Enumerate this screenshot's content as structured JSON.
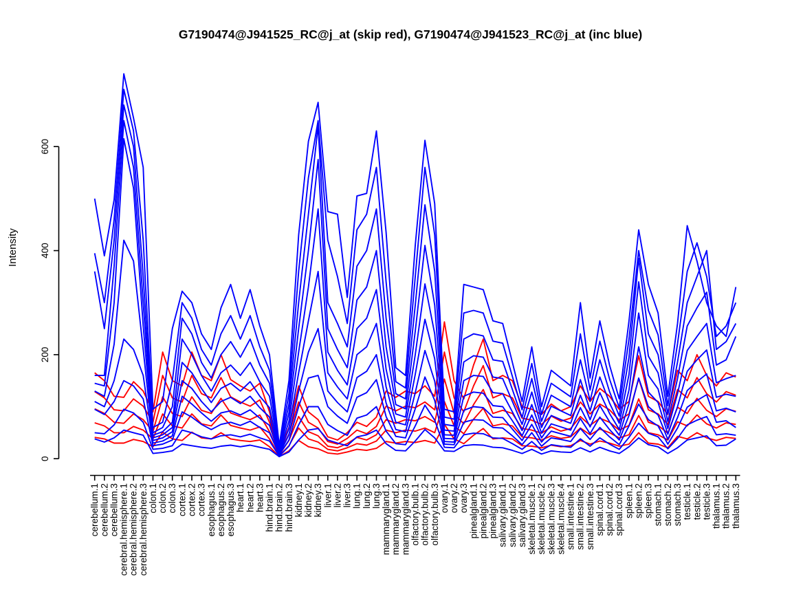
{
  "chart_data": {
    "type": "line",
    "title": "G7190474@J941525_RC@j_at (skip red), G7190474@J941523_RC@j_at (inc blue)",
    "xlabel": "",
    "ylabel": "Intensity",
    "yticks": [
      0,
      200,
      400,
      600
    ],
    "ylim": [
      0,
      745
    ],
    "grid": false,
    "legend_position": "none",
    "groups": {
      "red": "G7190474@J941525_RC@j_at (skip)",
      "blue": "G7190474@J941523_RC@j_at (inc)"
    },
    "colors": {
      "blue": "#0000ff",
      "red": "#ff0000",
      "axis": "#000000"
    },
    "categories": [
      "cerebellum.1",
      "cerebellum.2",
      "cerebellum.3",
      "cerebral.hemisphere.1",
      "cerebral.hemisphere.2",
      "cerebral.hemisphere.3",
      "colon.1",
      "colon.2",
      "colon.3",
      "cortex.1",
      "cortex.2",
      "cortex.3",
      "esophagus.1",
      "esophagus.2",
      "esophagus.3",
      "heart.1",
      "heart.2",
      "heart.3",
      "hind.brain.1",
      "hind.brain.2",
      "hind.brain.3",
      "kidney.1",
      "kidney.2",
      "kidney.3",
      "liver.1",
      "liver.2",
      "liver.3",
      "lung.1",
      "lung.2",
      "lung.3",
      "mammarygland.1",
      "mammarygland.2",
      "mammarygland.3",
      "olfactory.bulb.1",
      "olfactory.bulb.2",
      "olfactory.bulb.3",
      "ovary.1",
      "ovary.2",
      "ovary.3",
      "pinealgland.1",
      "pinealgland.2",
      "pinealgland.3",
      "salivary.gland.1",
      "salivary.gland.2",
      "salivary.gland.3",
      "skeletal.muscle.1",
      "skeletal.muscle.2",
      "skeletal.muscle.3",
      "skeletal.muscle.4",
      "small.intestine.1",
      "small.intestine.2",
      "small.intestine.3",
      "spinal.cord.1",
      "spinal.cord.2",
      "spinal.cord.3",
      "spleen.1",
      "spleen.2",
      "spleen.3",
      "stomach.1",
      "stomach.2",
      "stomach.3",
      "testicle.1",
      "testicle.2",
      "testicle.3",
      "thalamus.1",
      "thalamus.2",
      "thalamus.3"
    ],
    "series": [
      {
        "group": "red",
        "color": "#ff0000",
        "values": [
          165,
          150,
          120,
          118,
          148,
          130,
          90,
          205,
          150,
          140,
          205,
          160,
          150,
          200,
          152,
          140,
          130,
          145,
          90,
          14,
          60,
          140,
          90,
          75,
          42,
          36,
          50,
          70,
          62,
          80,
          130,
          118,
          130,
          125,
          140,
          120,
          263,
          150,
          115,
          180,
          230,
          150,
          160,
          150,
          100,
          95,
          85,
          105,
          92,
          100,
          140,
          110,
          135,
          120,
          95,
          110,
          198,
          120,
          110,
          85,
          170,
          150,
          200,
          160,
          140,
          165,
          157
        ]
      },
      {
        "group": "red",
        "color": "#ff0000",
        "values": [
          129,
          117,
          94,
          92,
          115,
          101,
          70,
          160,
          117,
          109,
          160,
          125,
          117,
          156,
          119,
          109,
          101,
          113,
          70,
          11,
          47,
          109,
          70,
          59,
          33,
          28,
          39,
          55,
          48,
          62,
          101,
          92,
          101,
          98,
          109,
          94,
          205,
          117,
          90,
          140,
          179,
          117,
          125,
          117,
          78,
          74,
          66,
          82,
          72,
          78,
          109,
          86,
          105,
          94,
          74,
          86,
          154,
          94,
          86,
          66,
          133,
          117,
          156,
          125,
          109,
          129,
          122
        ]
      },
      {
        "group": "red",
        "color": "#ff0000",
        "values": [
          96,
          87,
          70,
          68,
          86,
          75,
          52,
          119,
          87,
          81,
          119,
          93,
          87,
          116,
          88,
          81,
          75,
          84,
          52,
          8,
          35,
          81,
          52,
          44,
          24,
          21,
          29,
          41,
          36,
          46,
          75,
          68,
          75,
          73,
          81,
          70,
          153,
          87,
          67,
          104,
          133,
          87,
          93,
          87,
          58,
          55,
          49,
          61,
          53,
          58,
          81,
          64,
          78,
          70,
          55,
          64,
          115,
          70,
          64,
          49,
          99,
          87,
          116,
          93,
          81,
          96,
          91
        ]
      },
      {
        "group": "red",
        "color": "#ff0000",
        "values": [
          69,
          63,
          50,
          50,
          62,
          55,
          38,
          86,
          63,
          59,
          86,
          67,
          63,
          84,
          64,
          59,
          55,
          61,
          38,
          6,
          25,
          59,
          38,
          32,
          18,
          15,
          21,
          29,
          26,
          34,
          55,
          50,
          55,
          53,
          59,
          50,
          110,
          63,
          48,
          76,
          97,
          63,
          67,
          63,
          42,
          40,
          36,
          44,
          39,
          42,
          59,
          46,
          57,
          50,
          40,
          46,
          83,
          50,
          46,
          36,
          71,
          63,
          84,
          67,
          59,
          69,
          66
        ]
      },
      {
        "group": "red",
        "color": "#ff0000",
        "values": [
          41,
          38,
          30,
          30,
          37,
          33,
          23,
          51,
          38,
          35,
          51,
          40,
          38,
          50,
          38,
          35,
          33,
          36,
          23,
          4,
          15,
          35,
          23,
          19,
          11,
          9,
          13,
          18,
          16,
          20,
          33,
          30,
          33,
          31,
          35,
          30,
          66,
          38,
          29,
          45,
          58,
          38,
          40,
          38,
          25,
          24,
          21,
          26,
          23,
          25,
          35,
          28,
          34,
          30,
          24,
          28,
          50,
          30,
          28,
          21,
          43,
          38,
          50,
          40,
          35,
          41,
          39
        ]
      },
      {
        "group": "blue",
        "color": "#0000ff",
        "values": [
          500,
          390,
          498,
          740,
          655,
          560,
          95,
          110,
          250,
          322,
          300,
          240,
          210,
          290,
          335,
          270,
          325,
          255,
          200,
          25,
          150,
          430,
          610,
          685,
          475,
          470,
          310,
          505,
          510,
          630,
          435,
          175,
          160,
          410,
          612,
          490,
          95,
          90,
          335,
          330,
          325,
          265,
          260,
          185,
          110,
          215,
          100,
          170,
          155,
          140,
          300,
          155,
          265,
          180,
          115,
          265,
          440,
          335,
          280,
          120,
          260,
          448,
          380,
          300,
          255,
          235,
          330
        ]
      },
      {
        "group": "blue",
        "color": "#0000ff",
        "values": [
          395,
          300,
          460,
          710,
          630,
          420,
          60,
          70,
          150,
          300,
          270,
          210,
          180,
          240,
          275,
          230,
          275,
          215,
          170,
          20,
          125,
          360,
          540,
          650,
          420,
          350,
          260,
          440,
          470,
          560,
          340,
          148,
          136,
          350,
          560,
          430,
          80,
          76,
          280,
          285,
          280,
          226,
          222,
          158,
          94,
          183,
          85,
          145,
          132,
          119,
          240,
          132,
          226,
          153,
          98,
          230,
          400,
          285,
          238,
          102,
          221,
          360,
          415,
          350,
          235,
          255,
          300
        ]
      },
      {
        "group": "blue",
        "color": "#0000ff",
        "values": [
          360,
          250,
          420,
          680,
          600,
          350,
          50,
          60,
          100,
          270,
          240,
          185,
          155,
          200,
          225,
          195,
          230,
          180,
          145,
          16,
          105,
          300,
          470,
          640,
          300,
          260,
          215,
          370,
          400,
          480,
          270,
          125,
          115,
          295,
          488,
          360,
          66,
          63,
          230,
          240,
          236,
          190,
          187,
          133,
          79,
          154,
          72,
          122,
          111,
          100,
          190,
          111,
          190,
          129,
          82,
          195,
          385,
          240,
          200,
          86,
          186,
          300,
          350,
          400,
          210,
          225,
          260
        ]
      },
      {
        "group": "blue",
        "color": "#0000ff",
        "values": [
          160,
          160,
          370,
          650,
          560,
          300,
          45,
          52,
          70,
          230,
          200,
          160,
          130,
          165,
          180,
          160,
          185,
          148,
          120,
          13,
          88,
          250,
          400,
          575,
          250,
          210,
          175,
          305,
          330,
          400,
          215,
          104,
          96,
          245,
          410,
          295,
          55,
          53,
          186,
          198,
          195,
          157,
          154,
          110,
          66,
          128,
          60,
          101,
          92,
          83,
          152,
          92,
          157,
          107,
          68,
          162,
          340,
          197,
          165,
          71,
          154,
          255,
          290,
          320,
          180,
          190,
          235
        ]
      },
      {
        "group": "blue",
        "color": "#0000ff",
        "values": [
          145,
          140,
          300,
          615,
          520,
          255,
          40,
          46,
          60,
          185,
          165,
          135,
          108,
          135,
          145,
          130,
          148,
          120,
          98,
          11,
          72,
          205,
          330,
          480,
          205,
          170,
          142,
          250,
          270,
          325,
          172,
          86,
          80,
          200,
          336,
          240,
          46,
          45,
          150,
          160,
          158,
          127,
          125,
          90,
          54,
          104,
          49,
          83,
          75,
          68,
          122,
          75,
          127,
          87,
          56,
          132,
          280,
          160,
          134,
          58,
          125,
          208,
          235,
          260,
          146,
          154,
          160
        ]
      },
      {
        "group": "blue",
        "color": "#0000ff",
        "values": [
          130,
          120,
          220,
          420,
          380,
          210,
          35,
          40,
          52,
          150,
          135,
          110,
          90,
          110,
          118,
          106,
          120,
          98,
          80,
          9,
          58,
          165,
          265,
          360,
          165,
          138,
          115,
          200,
          215,
          260,
          138,
          70,
          65,
          162,
          268,
          192,
          39,
          38,
          120,
          128,
          126,
          102,
          100,
          73,
          44,
          84,
          40,
          67,
          61,
          55,
          98,
          61,
          102,
          71,
          45,
          106,
          215,
          128,
          108,
          47,
          100,
          168,
          190,
          209,
          118,
          124,
          120
        ]
      },
      {
        "group": "blue",
        "color": "#0000ff",
        "values": [
          110,
          100,
          150,
          230,
          210,
          160,
          30,
          34,
          44,
          120,
          105,
          88,
          72,
          88,
          92,
          84,
          94,
          78,
          64,
          8,
          46,
          130,
          205,
          250,
          130,
          108,
          90,
          156,
          168,
          200,
          107,
          56,
          52,
          127,
          208,
          149,
          33,
          32,
          93,
          100,
          98,
          80,
          79,
          57,
          35,
          66,
          32,
          53,
          48,
          43,
          77,
          48,
          80,
          56,
          36,
          83,
          155,
          100,
          84,
          37,
          79,
          131,
          148,
          163,
          92,
          97,
          90
        ]
      },
      {
        "group": "blue",
        "color": "#0000ff",
        "values": [
          95,
          85,
          110,
          150,
          140,
          115,
          25,
          28,
          36,
          90,
          80,
          66,
          56,
          66,
          70,
          64,
          72,
          60,
          50,
          7,
          36,
          100,
          155,
          160,
          100,
          82,
          68,
          118,
          127,
          152,
          81,
          43,
          40,
          96,
          157,
          112,
          28,
          27,
          70,
          75,
          74,
          60,
          59,
          44,
          27,
          50,
          24,
          40,
          37,
          33,
          58,
          37,
          60,
          42,
          27,
          63,
          105,
          75,
          63,
          28,
          59,
          99,
          112,
          123,
          70,
          73,
          60
        ]
      },
      {
        "group": "blue",
        "color": "#0000ff",
        "values": [
          50,
          48,
          65,
          95,
          88,
          70,
          18,
          20,
          25,
          55,
          50,
          42,
          38,
          44,
          46,
          42,
          47,
          40,
          34,
          5,
          24,
          65,
          100,
          100,
          66,
          54,
          45,
          78,
          84,
          100,
          53,
          29,
          27,
          63,
          103,
          74,
          22,
          21,
          46,
          49,
          48,
          40,
          39,
          29,
          18,
          33,
          16,
          27,
          24,
          22,
          38,
          24,
          40,
          28,
          18,
          41,
          68,
          49,
          42,
          19,
          39,
          65,
          74,
          81,
          46,
          48,
          45
        ]
      },
      {
        "group": "blue",
        "color": "#0000ff",
        "values": [
          38,
          32,
          40,
          55,
          50,
          45,
          10,
          12,
          15,
          28,
          25,
          22,
          20,
          24,
          26,
          23,
          26,
          22,
          18,
          4,
          13,
          36,
          55,
          58,
          36,
          30,
          25,
          42,
          46,
          55,
          29,
          16,
          15,
          34,
          56,
          40,
          15,
          14,
          25,
          27,
          26,
          22,
          21,
          16,
          10,
          18,
          9,
          15,
          13,
          12,
          21,
          13,
          22,
          15,
          10,
          23,
          40,
          27,
          23,
          10,
          21,
          36,
          40,
          44,
          25,
          26,
          38
        ]
      }
    ]
  }
}
